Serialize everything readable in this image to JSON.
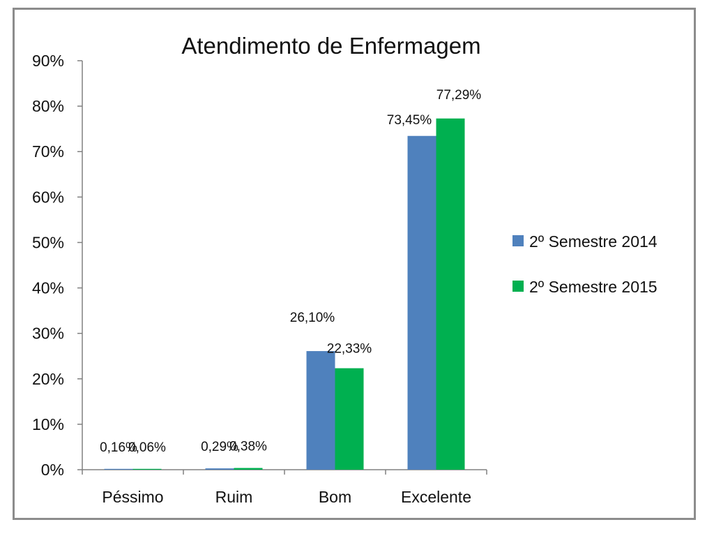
{
  "chart_data": {
    "type": "bar",
    "title": "Atendimento de Enfermagem",
    "xlabel": "",
    "ylabel": "",
    "categories": [
      "Péssimo",
      "Ruim",
      "Bom",
      "Excelente"
    ],
    "series": [
      {
        "name": "2º Semestre 2014",
        "color": "#4f81bd",
        "values": [
          0.16,
          0.29,
          26.1,
          73.45
        ],
        "labels": [
          "0,16%",
          "0,29%",
          "26,10%",
          "73,45%"
        ]
      },
      {
        "name": "2º Semestre 2015",
        "color": "#00b050",
        "values": [
          0.06,
          0.38,
          22.33,
          77.29
        ],
        "labels": [
          "0,06%",
          "0,38%",
          "22,33%",
          "77,29%"
        ]
      }
    ],
    "ylim": [
      0,
      90
    ],
    "yticks": [
      0,
      10,
      20,
      30,
      40,
      50,
      60,
      70,
      80,
      90
    ],
    "ytick_labels": [
      "0%",
      "10%",
      "20%",
      "30%",
      "40%",
      "50%",
      "60%",
      "70%",
      "80%",
      "90%"
    ],
    "grid": false,
    "legend_position": "right"
  }
}
